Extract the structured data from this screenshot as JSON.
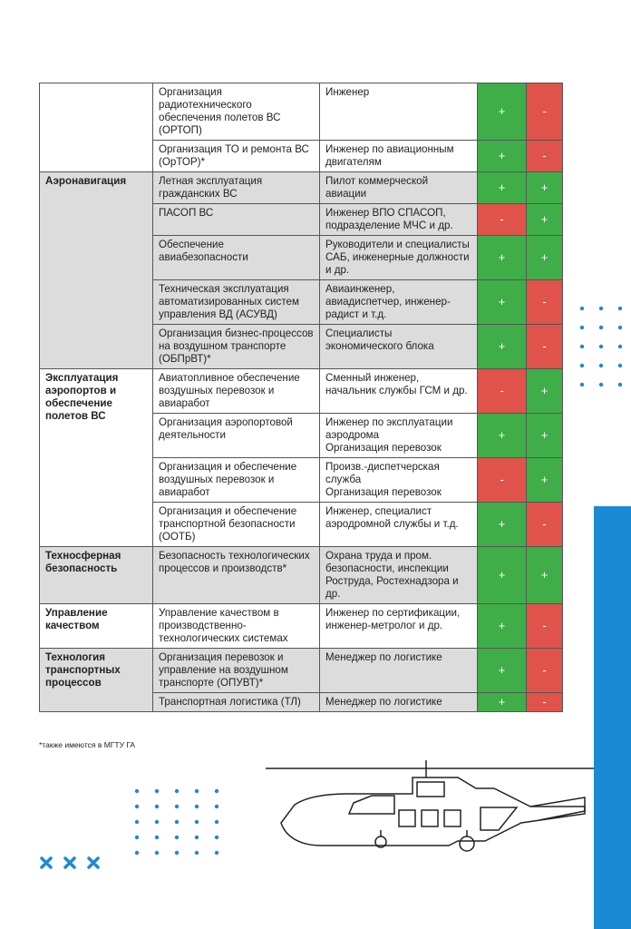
{
  "table": {
    "groups": [
      {
        "rows": [
          [
            "Организация радиотехнического обеспечения полетов ВС (ОРТОП)",
            "Инженер",
            "+",
            "-"
          ],
          [
            "Организация ТО и ремонта ВС (ОрТОР)*",
            "Инженер по авиационным двигателям",
            "+",
            "-"
          ]
        ]
      },
      {
        "title": "Аэронавигация",
        "rows": [
          [
            "Летная эксплуатация гражданских ВС",
            "Пилот коммерческой авиации",
            "+",
            "+"
          ],
          [
            "ПАСОП ВС",
            "Инженер ВПО СПАСОП, подразделение МЧС и др.",
            "-",
            "+"
          ],
          [
            "Обеспечение авиабезопасности",
            "Руководители и специалисты САБ, инженерные должности и др.",
            "+",
            "+"
          ],
          [
            "Техническая эксплуатация автоматизированных систем управления ВД (АСУВД)",
            "Авиаинженер, авиадиспетчер, инженер-радист и т.д.",
            "+",
            "-"
          ],
          [
            "Организация бизнес-процессов на воздушном транспорте (ОБПрВТ)*",
            "Специалисты экономического блока",
            "+",
            "-"
          ]
        ]
      },
      {
        "title": "Эксплуатация аэропортов и обеспечение полетов ВС",
        "rows": [
          [
            "Авиатопливное обеспечение воздушных перевозок и авиаработ",
            "Сменный инженер, начальник службы ГСМ и др.",
            "-",
            "+"
          ],
          [
            "Организация аэропортовой деятельности",
            "Инженер по эксплуатации аэродрома\nОрганизация перевозок",
            "+",
            "+"
          ],
          [
            "Организация и обеспечение воздушных перевозок и авиаработ",
            "Произв.-диспетчерская служба\nОрганизация перевозок",
            "-",
            "+"
          ],
          [
            "Организация и обеспечение транспортной безопасности (ООТБ)",
            "Инженер, специалист аэродромной службы и т.д.",
            "+",
            "-"
          ]
        ]
      },
      {
        "title": "Техносферная безопасность",
        "rows": [
          [
            "Безопасность технологических процессов и производств*",
            "Охрана труда и пром. безопасности, инспекции Роструда, Ростехнадзора и др.",
            "+",
            "+"
          ]
        ]
      },
      {
        "title": "Управление качеством",
        "rows": [
          [
            "Управление качеством в производственно-технологических системах",
            "Инженер по сертификации, инженер-метролог и др.",
            "+",
            "-"
          ]
        ]
      },
      {
        "title": "Технология транспортных процессов",
        "rows": [
          [
            "Организация перевозок и управление на воздушном транспорте (ОПУВТ)*",
            "Менеджер по логистике",
            "+",
            "-"
          ],
          [
            "Транспортная логистика (ТЛ)",
            "Менеджер по логистике",
            "+",
            "-"
          ]
        ]
      }
    ]
  },
  "footnote": "*также имеются в МГТУ ГА"
}
